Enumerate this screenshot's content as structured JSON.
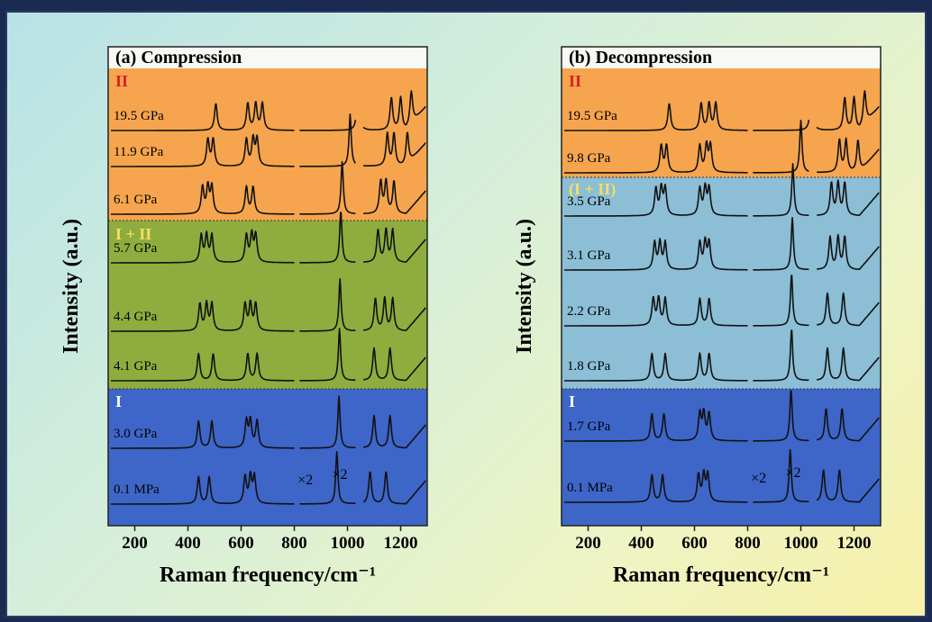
{
  "colors": {
    "phase_II": "#f6a54e",
    "phase_I_II_compression": "#8ead3e",
    "phase_I_II_decompression": "#8cbed6",
    "phase_I": "#3e66c8",
    "phase_II_label": "#d62020",
    "phase_I_II_label": "#f4e060",
    "phase_I_label": "#ffffff"
  },
  "chart_data": [
    {
      "type": "line",
      "title": "(a) Compression",
      "xlabel": "Raman frequency/cm⁻¹",
      "ylabel": "Intensity (a.u.)",
      "xlim": [
        100,
        1300
      ],
      "xticks": [
        "200",
        "400",
        "600",
        "800",
        "1000",
        "1200"
      ],
      "phases": [
        {
          "label": "II",
          "color": "phase_II"
        },
        {
          "label": "I + II",
          "color": "phase_I_II_compression"
        },
        {
          "label": "I",
          "color": "phase_I"
        }
      ],
      "multipliers": [
        "×2",
        "×2"
      ],
      "series": [
        {
          "name": "19.5 GPa",
          "phase": "II",
          "peaks": [
            505,
            625,
            655,
            680,
            1040,
            1165,
            1200,
            1240
          ]
        },
        {
          "name": "11.9 GPa",
          "phase": "II",
          "peaks": [
            475,
            495,
            620,
            645,
            660,
            1010,
            1150,
            1175,
            1225
          ]
        },
        {
          "name": "6.1 GPa",
          "phase": "II",
          "peaks": [
            455,
            475,
            490,
            620,
            645,
            980,
            1125,
            1145,
            1175
          ]
        },
        {
          "name": "5.7 GPa",
          "phase": "I + II",
          "peaks": [
            450,
            470,
            490,
            620,
            640,
            655,
            975,
            1115,
            1145,
            1170
          ]
        },
        {
          "name": "4.4 GPa",
          "phase": "I + II",
          "peaks": [
            445,
            470,
            490,
            615,
            635,
            655,
            972,
            1105,
            1140,
            1170
          ]
        },
        {
          "name": "4.1 GPa",
          "phase": "I + II",
          "peaks": [
            440,
            495,
            625,
            660,
            970,
            1100,
            1160
          ]
        },
        {
          "name": "3.0 GPa",
          "phase": "I",
          "peaks": [
            440,
            490,
            620,
            635,
            660,
            968,
            1100,
            1160
          ]
        },
        {
          "name": "0.1 MPa",
          "phase": "I",
          "peaks": [
            440,
            480,
            615,
            635,
            650,
            960,
            1085,
            1145
          ]
        }
      ]
    },
    {
      "type": "line",
      "title": "(b) Decompression",
      "xlabel": "Raman frequency/cm⁻¹",
      "ylabel": "Intensity (a.u.)",
      "xlim": [
        100,
        1300
      ],
      "xticks": [
        "200",
        "400",
        "600",
        "800",
        "1000",
        "1200"
      ],
      "phases": [
        {
          "label": "II",
          "color": "phase_II"
        },
        {
          "label": "(I + II)",
          "color": "phase_I_II_decompression"
        },
        {
          "label": "I",
          "color": "phase_I"
        }
      ],
      "multipliers": [
        "×2",
        "×2"
      ],
      "series": [
        {
          "name": "19.5 GPa",
          "phase": "II",
          "peaks": [
            505,
            625,
            655,
            680,
            1040,
            1165,
            1200,
            1240
          ]
        },
        {
          "name": "9.8 GPa",
          "phase": "II",
          "peaks": [
            475,
            495,
            620,
            645,
            660,
            1000,
            1145,
            1170,
            1215
          ]
        },
        {
          "name": "3.5 GPa",
          "phase": "(I + II)",
          "peaks": [
            455,
            475,
            490,
            620,
            640,
            655,
            970,
            1115,
            1140,
            1165
          ]
        },
        {
          "name": "3.1 GPa",
          "phase": "(I + II)",
          "peaks": [
            450,
            470,
            490,
            620,
            640,
            655,
            968,
            1110,
            1140,
            1165
          ]
        },
        {
          "name": "2.2 GPa",
          "phase": "(I + II)",
          "peaks": [
            445,
            465,
            490,
            620,
            655,
            965,
            1100,
            1160
          ]
        },
        {
          "name": "1.8 GPa",
          "phase": "(I + II)",
          "peaks": [
            440,
            490,
            620,
            655,
            965,
            1100,
            1160
          ]
        },
        {
          "name": "1.7 GPa",
          "phase": "I",
          "peaks": [
            440,
            485,
            620,
            635,
            655,
            963,
            1095,
            1155
          ]
        },
        {
          "name": "0.1 MPa",
          "phase": "I",
          "peaks": [
            440,
            480,
            615,
            635,
            650,
            960,
            1085,
            1145
          ]
        }
      ]
    }
  ]
}
